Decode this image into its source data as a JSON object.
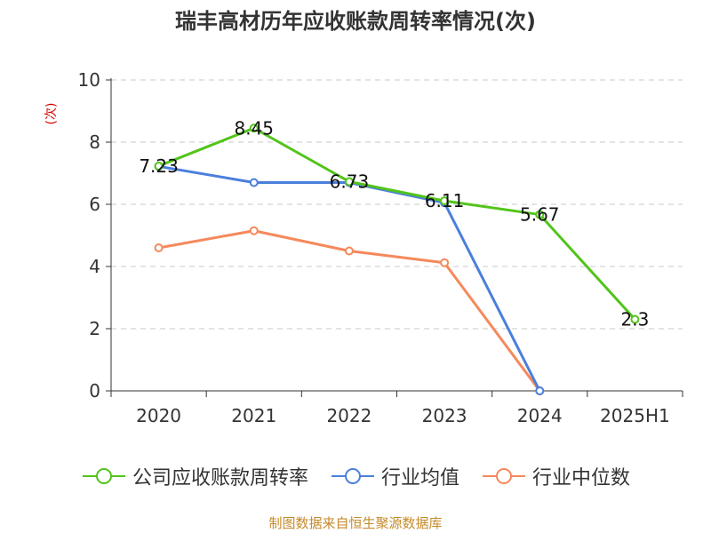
{
  "chart_data": {
    "type": "line",
    "title": "瑞丰高材历年应收账款周转率情况(次)",
    "ylabel": "(次)",
    "xlabel": "",
    "categories": [
      "2020",
      "2021",
      "2022",
      "2023",
      "2024",
      "2025H1"
    ],
    "ylim": [
      0,
      10
    ],
    "yticks": [
      0,
      2,
      4,
      6,
      8,
      10
    ],
    "grid": true,
    "legend_position": "bottom",
    "series": [
      {
        "name": "公司应收账款周转率",
        "color": "#52c41a",
        "values": [
          7.23,
          8.45,
          6.73,
          6.11,
          5.67,
          2.3
        ],
        "labels": [
          "7.23",
          "8.45",
          "6.73",
          "6.11",
          "5.67",
          "2.3"
        ]
      },
      {
        "name": "行业均值",
        "color": "#4a7fdc",
        "values": [
          7.22,
          6.7,
          6.7,
          6.05,
          0,
          null
        ]
      },
      {
        "name": "行业中位数",
        "color": "#f5895b",
        "values": [
          4.6,
          5.15,
          4.5,
          4.12,
          0,
          null
        ]
      }
    ]
  },
  "source_note": "制图数据来自恒生聚源数据库"
}
